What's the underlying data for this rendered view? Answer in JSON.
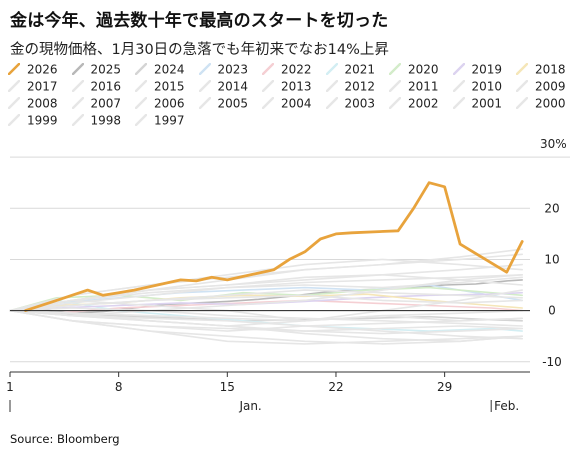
{
  "chart_data": {
    "type": "line",
    "title": "金は今年、過去数十年で最高のスタートを切った",
    "subtitle": "金の現物価格、1月30日の急落でも年初来でなお14%上昇",
    "source": "Source: Bloomberg",
    "yunit_label": "30%",
    "y_ticks": [
      20,
      10,
      0,
      -10
    ],
    "ylim": [
      -12,
      31
    ],
    "grid": true,
    "legend_position": "top",
    "x_ticks": [
      {
        "day": 1,
        "label": "1"
      },
      {
        "day": 8,
        "label": "8"
      },
      {
        "day": 15,
        "label": "15"
      },
      {
        "day": 22,
        "label": "22"
      },
      {
        "day": 29,
        "label": "29"
      }
    ],
    "month_labels": [
      {
        "day": 16.5,
        "label": "Jan."
      },
      {
        "day": 33,
        "label": "Feb."
      }
    ],
    "month_start_marks": [
      1,
      32
    ],
    "xlim": [
      1,
      34.5
    ],
    "series": [
      {
        "name": "2026",
        "color": "#e8a33c",
        "highlight": true,
        "x": [
          2,
          4,
          6,
          7,
          8,
          9,
          12,
          13,
          14,
          15,
          18,
          19,
          20,
          21,
          22,
          23,
          26,
          27,
          28,
          29,
          30,
          33,
          34
        ],
        "y": [
          0,
          2,
          4,
          3,
          3.5,
          4,
          6,
          5.8,
          6.5,
          6,
          8,
          10,
          11.5,
          14,
          15,
          15.2,
          15.6,
          20,
          25,
          24.2,
          13,
          7.5,
          13.5
        ]
      },
      {
        "name": "2025",
        "color": "#b8b8b8",
        "highlight": false,
        "x": [
          1,
          3,
          5,
          7,
          9,
          11,
          13,
          15,
          17,
          19,
          21,
          23,
          25,
          27,
          29,
          31,
          33,
          34
        ],
        "y": [
          0,
          0.2,
          -0.5,
          -0.2,
          0.5,
          1.2,
          1.5,
          1.8,
          2.2,
          2.8,
          3.5,
          4,
          4.2,
          4.5,
          5,
          5.2,
          5.8,
          6
        ]
      },
      {
        "name": "2024",
        "color": "#d4d4d4",
        "highlight": false,
        "x": [
          1,
          4,
          8,
          12,
          16,
          20,
          24,
          28,
          32,
          34
        ],
        "y": [
          0,
          -0.5,
          -1,
          -1.5,
          -2,
          -1.8,
          -1.5,
          -1.2,
          -1.8,
          -2
        ]
      },
      {
        "name": "2023",
        "color": "#cfe2f3",
        "highlight": false,
        "x": [
          1,
          4,
          8,
          12,
          16,
          20,
          24,
          28,
          32,
          34
        ],
        "y": [
          0,
          1.5,
          2.5,
          3.5,
          4,
          4.5,
          4,
          5,
          3,
          2
        ]
      },
      {
        "name": "2022",
        "color": "#f5cfd3",
        "highlight": false,
        "x": [
          1,
          4,
          8,
          12,
          16,
          20,
          24,
          28,
          32,
          34
        ],
        "y": [
          0,
          -0.5,
          0.5,
          1,
          1.5,
          2,
          1.5,
          1,
          0.5,
          0
        ]
      },
      {
        "name": "2021",
        "color": "#d3eef3",
        "highlight": false,
        "x": [
          1,
          4,
          8,
          12,
          16,
          20,
          24,
          28,
          32,
          34
        ],
        "y": [
          0,
          2,
          0,
          -1,
          -2,
          -3,
          -3.5,
          -4,
          -3.5,
          -4
        ]
      },
      {
        "name": "2020",
        "color": "#d3ecc9",
        "highlight": false,
        "x": [
          1,
          4,
          8,
          12,
          16,
          20,
          24,
          28,
          32,
          34
        ],
        "y": [
          0,
          2.5,
          3,
          2,
          3.5,
          3,
          4,
          4.5,
          3.5,
          3
        ]
      },
      {
        "name": "2019",
        "color": "#dcd3f0",
        "highlight": false,
        "x": [
          1,
          4,
          8,
          12,
          16,
          20,
          24,
          28,
          32,
          34
        ],
        "y": [
          0,
          0.5,
          1,
          1.5,
          1.2,
          1.8,
          2.5,
          3,
          3.2,
          3.5
        ]
      },
      {
        "name": "2018",
        "color": "#f5e6b8",
        "highlight": false,
        "x": [
          1,
          4,
          8,
          12,
          16,
          20,
          24,
          28,
          32,
          34
        ],
        "y": [
          0,
          1,
          1.5,
          2.5,
          3,
          2.8,
          3.2,
          2,
          1,
          0.5
        ]
      },
      {
        "name": "2017",
        "color": "#e6e6e6",
        "highlight": false,
        "x": [
          1,
          5,
          10,
          15,
          20,
          25,
          30,
          34
        ],
        "y": [
          0,
          1.5,
          3,
          4.5,
          5.5,
          6,
          6.5,
          7
        ]
      },
      {
        "name": "2016",
        "color": "#e6e6e6",
        "highlight": false,
        "x": [
          1,
          5,
          10,
          15,
          20,
          25,
          30,
          34
        ],
        "y": [
          0,
          2,
          3.5,
          4.5,
          5,
          4.5,
          5.5,
          6.5
        ]
      },
      {
        "name": "2015",
        "color": "#e6e6e6",
        "highlight": false,
        "x": [
          1,
          5,
          10,
          15,
          20,
          25,
          30,
          34
        ],
        "y": [
          0,
          3,
          5,
          7,
          9,
          10,
          9,
          8
        ]
      },
      {
        "name": "2014",
        "color": "#e6e6e6",
        "highlight": false,
        "x": [
          1,
          5,
          10,
          15,
          20,
          25,
          30,
          34
        ],
        "y": [
          0,
          1,
          2,
          3,
          4,
          3.5,
          3,
          2.5
        ]
      },
      {
        "name": "2013",
        "color": "#e6e6e6",
        "highlight": false,
        "x": [
          1,
          5,
          10,
          15,
          20,
          25,
          30,
          34
        ],
        "y": [
          0,
          0.5,
          0,
          -1,
          -1.5,
          -2,
          -2.5,
          -3
        ]
      },
      {
        "name": "2012",
        "color": "#e6e6e6",
        "highlight": false,
        "x": [
          1,
          5,
          10,
          15,
          20,
          25,
          30,
          34
        ],
        "y": [
          0,
          2,
          4,
          6,
          8,
          9,
          10,
          11
        ]
      },
      {
        "name": "2011",
        "color": "#e6e6e6",
        "highlight": false,
        "x": [
          1,
          5,
          10,
          15,
          20,
          25,
          30,
          34
        ],
        "y": [
          0,
          -2,
          -4,
          -5,
          -6,
          -6.5,
          -6,
          -5
        ]
      },
      {
        "name": "2010",
        "color": "#e6e6e6",
        "highlight": false,
        "x": [
          1,
          5,
          10,
          15,
          20,
          25,
          30,
          34
        ],
        "y": [
          0,
          2,
          1,
          0,
          -2,
          -1,
          -2,
          -1.5
        ]
      },
      {
        "name": "2009",
        "color": "#e6e6e6",
        "highlight": false,
        "x": [
          1,
          5,
          10,
          15,
          20,
          25,
          30,
          34
        ],
        "y": [
          0,
          -1,
          0,
          1,
          2,
          4,
          6,
          7
        ]
      },
      {
        "name": "2008",
        "color": "#e6e6e6",
        "highlight": false,
        "x": [
          1,
          5,
          10,
          15,
          20,
          25,
          30,
          34
        ],
        "y": [
          0,
          2,
          4,
          5,
          6,
          7,
          8,
          9
        ]
      },
      {
        "name": "2007",
        "color": "#e6e6e6",
        "highlight": false,
        "x": [
          1,
          5,
          10,
          15,
          20,
          25,
          30,
          34
        ],
        "y": [
          0,
          -2,
          -3,
          -4,
          -3,
          -2.5,
          -2,
          -1.5
        ]
      },
      {
        "name": "2006",
        "color": "#e6e6e6",
        "highlight": false,
        "x": [
          1,
          5,
          10,
          15,
          20,
          25,
          30,
          34
        ],
        "y": [
          0,
          3,
          5,
          6.5,
          8,
          9,
          10.5,
          12
        ]
      },
      {
        "name": "2005",
        "color": "#e6e6e6",
        "highlight": false,
        "x": [
          1,
          5,
          10,
          15,
          20,
          25,
          30,
          34
        ],
        "y": [
          0,
          -1,
          -2,
          -3,
          -4,
          -3.5,
          -3,
          -3.5
        ]
      },
      {
        "name": "2004",
        "color": "#e6e6e6",
        "highlight": false,
        "x": [
          1,
          5,
          10,
          15,
          20,
          25,
          30,
          34
        ],
        "y": [
          0,
          -2,
          -4,
          -6,
          -6.5,
          -6,
          -5.5,
          -5
        ]
      },
      {
        "name": "2003",
        "color": "#e6e6e6",
        "highlight": false,
        "x": [
          1,
          5,
          10,
          15,
          20,
          25,
          30,
          34
        ],
        "y": [
          0,
          2,
          4,
          5,
          6.5,
          7,
          6,
          5
        ]
      },
      {
        "name": "2002",
        "color": "#e6e6e6",
        "highlight": false,
        "x": [
          1,
          5,
          10,
          15,
          20,
          25,
          30,
          34
        ],
        "y": [
          0,
          1,
          2,
          2.5,
          3,
          2,
          1.5,
          2
        ]
      },
      {
        "name": "2001",
        "color": "#e6e6e6",
        "highlight": false,
        "x": [
          1,
          5,
          10,
          15,
          20,
          25,
          30,
          34
        ],
        "y": [
          0,
          -0.5,
          -1,
          -1.5,
          -2,
          -1,
          -0.5,
          0
        ]
      },
      {
        "name": "2000",
        "color": "#e6e6e6",
        "highlight": false,
        "x": [
          1,
          5,
          10,
          15,
          20,
          25,
          30,
          34
        ],
        "y": [
          0,
          -1,
          -2,
          -3,
          -2,
          0,
          2,
          4
        ]
      },
      {
        "name": "1999",
        "color": "#e6e6e6",
        "highlight": false,
        "x": [
          1,
          5,
          10,
          15,
          20,
          25,
          30,
          34
        ],
        "y": [
          0,
          -1,
          -1.5,
          -2,
          -3,
          -4,
          -5,
          -5.5
        ]
      },
      {
        "name": "1998",
        "color": "#e6e6e6",
        "highlight": false,
        "x": [
          1,
          5,
          10,
          15,
          20,
          25,
          30,
          34
        ],
        "y": [
          0,
          -0.5,
          -2,
          -3,
          -4.5,
          -5.5,
          -6,
          -5
        ]
      },
      {
        "name": "1997",
        "color": "#e6e6e6",
        "highlight": false,
        "x": [
          1,
          5,
          10,
          15,
          20,
          25,
          30,
          34
        ],
        "y": [
          0,
          -2,
          -3,
          -3.5,
          -4,
          -4.5,
          -4,
          -3.5
        ]
      }
    ]
  }
}
